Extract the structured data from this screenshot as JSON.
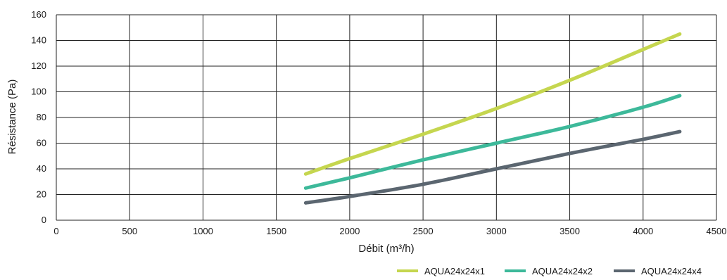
{
  "chart_data": {
    "type": "line",
    "title": "",
    "xlabel": "Débit (m³/h)",
    "ylabel": "Résistance (Pa)",
    "xlim": [
      0,
      4500
    ],
    "ylim": [
      0,
      160
    ],
    "x_ticks": [
      0,
      500,
      1000,
      1500,
      2000,
      2500,
      3000,
      3500,
      4000,
      4500
    ],
    "y_ticks": [
      0,
      20,
      40,
      60,
      80,
      100,
      120,
      140,
      160
    ],
    "grid": true,
    "legend_position": "bottom-right",
    "series": [
      {
        "name": "AQUA24x24x1",
        "color": "#c5d64f",
        "points": [
          [
            1700,
            36
          ],
          [
            2000,
            48
          ],
          [
            2500,
            67
          ],
          [
            3000,
            87
          ],
          [
            3500,
            109
          ],
          [
            4000,
            133
          ],
          [
            4250,
            145
          ]
        ]
      },
      {
        "name": "AQUA24x24x2",
        "color": "#3db99a",
        "points": [
          [
            1700,
            25
          ],
          [
            2000,
            33
          ],
          [
            2500,
            47
          ],
          [
            3000,
            60
          ],
          [
            3500,
            73
          ],
          [
            4000,
            88
          ],
          [
            4250,
            97
          ]
        ]
      },
      {
        "name": "AQUA24x24x4",
        "color": "#5b6670",
        "points": [
          [
            1700,
            13.5
          ],
          [
            2000,
            18.5
          ],
          [
            2500,
            28
          ],
          [
            3000,
            40
          ],
          [
            3500,
            52
          ],
          [
            4000,
            63
          ],
          [
            4250,
            69
          ]
        ]
      }
    ]
  }
}
